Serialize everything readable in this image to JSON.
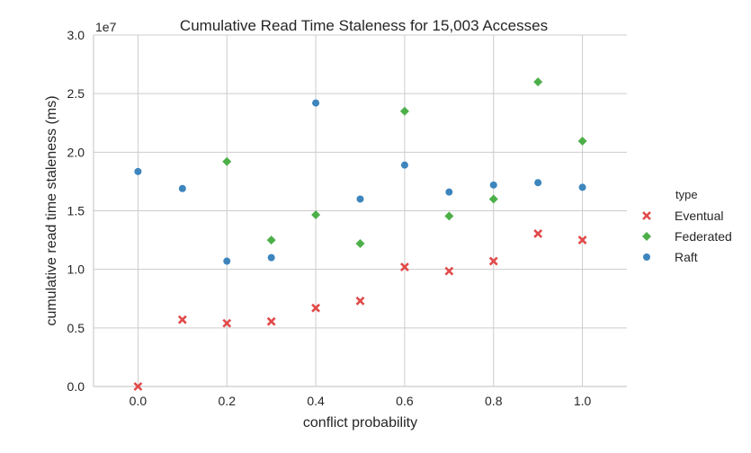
{
  "chart_data": {
    "type": "scatter",
    "title": "Cumulative Read Time Staleness for 15,003 Accesses",
    "xlabel": "conflict probability",
    "ylabel": "cumulative read time staleness (ms)",
    "y_multiplier_label": "1e7",
    "xlim": [
      -0.1,
      1.1
    ],
    "ylim": [
      0.0,
      3.0
    ],
    "x_ticks": [
      0.0,
      0.2,
      0.4,
      0.6,
      0.8,
      1.0
    ],
    "x_tick_labels": [
      "0.0",
      "0.2",
      "0.4",
      "0.6",
      "0.8",
      "1.0"
    ],
    "y_ticks": [
      0.0,
      0.5,
      1.0,
      1.5,
      2.0,
      2.5,
      3.0
    ],
    "y_tick_labels": [
      "0.0",
      "0.5",
      "1.0",
      "1.5",
      "2.0",
      "2.5",
      "3.0"
    ],
    "grid": true,
    "legend_title": "type",
    "legend_position": "right",
    "series": [
      {
        "name": "Eventual",
        "marker": "x",
        "color": "#e24a4a",
        "x": [
          0.0,
          0.1,
          0.2,
          0.3,
          0.4,
          0.5,
          0.6,
          0.7,
          0.8,
          0.9,
          1.0
        ],
        "y": [
          0.0,
          0.57,
          0.54,
          0.555,
          0.67,
          0.73,
          1.02,
          0.985,
          1.07,
          1.305,
          1.25
        ]
      },
      {
        "name": "Federated",
        "marker": "diamond",
        "color": "#4daf4a",
        "x": [
          0.2,
          0.3,
          0.4,
          0.5,
          0.6,
          0.7,
          0.8,
          0.9,
          1.0
        ],
        "y": [
          1.92,
          1.25,
          1.465,
          1.22,
          2.35,
          1.455,
          1.6,
          2.6,
          2.095
        ]
      },
      {
        "name": "Raft",
        "marker": "circle",
        "color": "#3d85bd",
        "x": [
          0.0,
          0.1,
          0.2,
          0.3,
          0.4,
          0.5,
          0.6,
          0.7,
          0.8,
          0.9,
          1.0
        ],
        "y": [
          1.835,
          1.69,
          1.07,
          1.1,
          2.42,
          1.6,
          1.89,
          1.66,
          1.72,
          1.74,
          1.7
        ]
      }
    ]
  }
}
